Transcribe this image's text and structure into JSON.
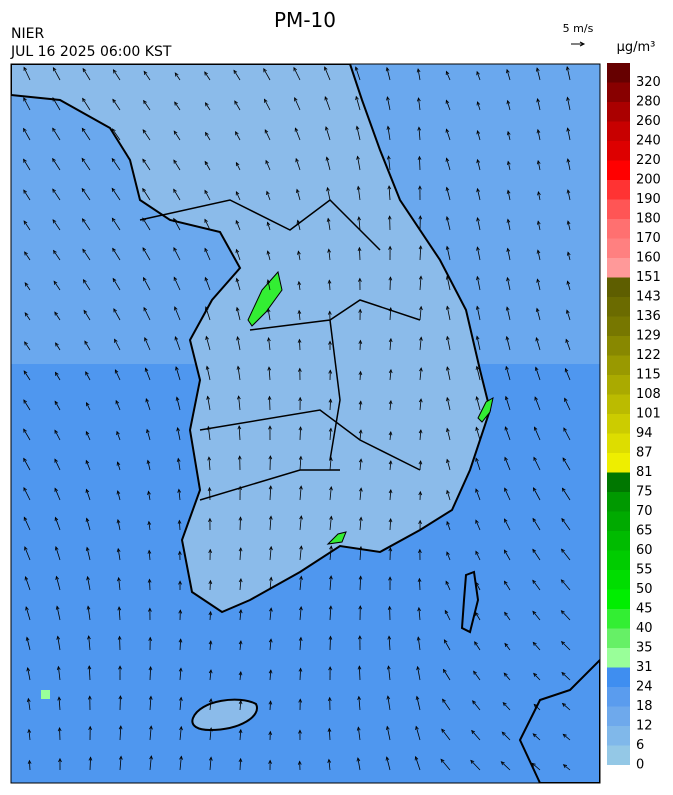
{
  "header": {
    "title": "PM-10",
    "agency": "NIER",
    "time": "JUL 16 2025 06:00 KST",
    "wind_scale": "5 m/s",
    "unit": "μg/m³"
  },
  "colorbar": {
    "ticks": [
      0,
      6,
      12,
      18,
      24,
      31,
      35,
      40,
      45,
      50,
      55,
      60,
      65,
      70,
      75,
      81,
      87,
      94,
      101,
      108,
      115,
      122,
      129,
      136,
      143,
      151,
      160,
      170,
      180,
      190,
      200,
      220,
      240,
      260,
      280,
      320
    ],
    "colors": [
      "#94c8e6",
      "#80b8ea",
      "#6ea9ec",
      "#5a9cee",
      "#3f8ef0",
      "#99ff99",
      "#66f066",
      "#33ee33",
      "#00ee00",
      "#00dd00",
      "#00cc00",
      "#00bb00",
      "#00aa00",
      "#009900",
      "#007700",
      "#eeee00",
      "#dddd00",
      "#cccc00",
      "#bbbb00",
      "#aaaa00",
      "#999900",
      "#888800",
      "#777700",
      "#6b6b00",
      "#5e5e00",
      "#ff9999",
      "#ff8080",
      "#ff7070",
      "#ff5555",
      "#ff3333",
      "#ff0000",
      "#dd0000",
      "#c80000",
      "#aa0000",
      "#880000",
      "#660000"
    ]
  }
}
